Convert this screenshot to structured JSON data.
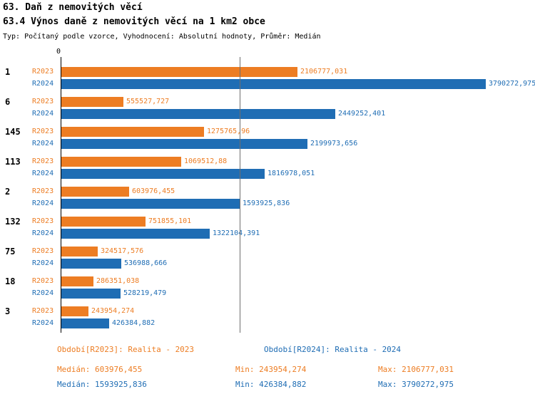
{
  "title": "63. Daň z nemovitých věcí",
  "subtitle": "63.4 Výnos daně z nemovitých věcí na 1 km2 obce",
  "meta": "Typ: Počítaný podle vzorce, Vyhodnocení: Absolutní hodnoty, Průměr: Medián",
  "colors": {
    "r2023": "#ED7D23",
    "r2024": "#1F6DB4",
    "axis": "#000000",
    "median_line": "#6e6e6e"
  },
  "chart_data": {
    "type": "bar",
    "orientation": "horizontal",
    "zero_label": "0",
    "categories": [
      "1",
      "6",
      "145",
      "113",
      "2",
      "132",
      "75",
      "18",
      "3"
    ],
    "series": [
      {
        "name": "R2023",
        "color": "#ED7D23",
        "values": [
          2106777.031,
          555527.727,
          1275765.96,
          1069512.88,
          603976.455,
          751855.101,
          324517.576,
          286351.038,
          243954.274
        ],
        "labels": [
          "2106777,031",
          "555527,727",
          "1275765,96",
          "1069512,88",
          "603976,455",
          "751855,101",
          "324517,576",
          "286351,038",
          "243954,274"
        ]
      },
      {
        "name": "R2024",
        "color": "#1F6DB4",
        "values": [
          3790272.975,
          2449252.401,
          2199973.656,
          1816978.051,
          1593925.836,
          1322104.391,
          536988.666,
          528219.479,
          426384.882
        ],
        "labels": [
          "3790272,975",
          "2449252,401",
          "2199973,656",
          "1816978,051",
          "1593925,836",
          "1322104,391",
          "536988,666",
          "528219,479",
          "426384,882"
        ]
      }
    ],
    "xlim": [
      0,
      3790272.975
    ],
    "grid": false,
    "median_line_value": 1593925.836,
    "legend_position": "bottom"
  },
  "legend": {
    "r2023": "Období[R2023]: Realita - 2023",
    "r2024": "Období[R2024]: Realita - 2024"
  },
  "stats": {
    "r2023": {
      "median": "Medián: 603976,455",
      "min": "Min: 243954,274",
      "max": "Max: 2106777,031"
    },
    "r2024": {
      "median": "Medián: 1593925,836",
      "min": "Min: 426384,882",
      "max": "Max: 3790272,975"
    }
  }
}
